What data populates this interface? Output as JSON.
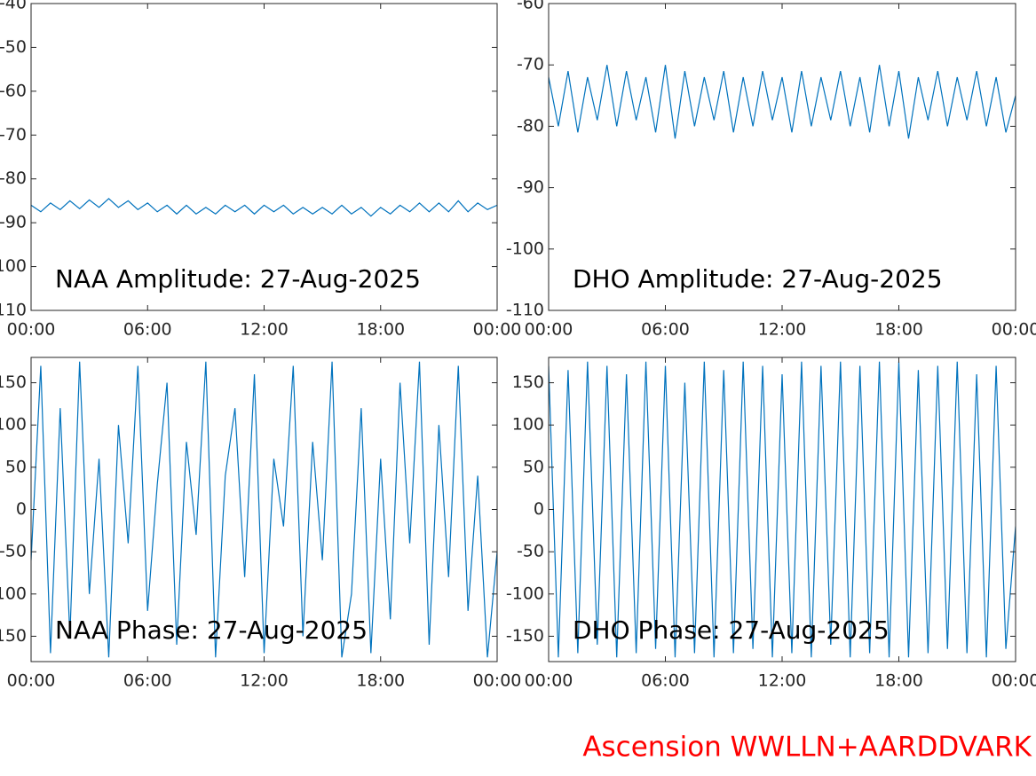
{
  "chart_data": [
    {
      "type": "line",
      "annotation": "NAA Amplitude: 27-Aug-2025",
      "xlim": [
        0,
        24
      ],
      "xticks": [
        {
          "value": 0,
          "label": "00:00"
        },
        {
          "value": 6,
          "label": "06:00"
        },
        {
          "value": 12,
          "label": "12:00"
        },
        {
          "value": 18,
          "label": "18:00"
        },
        {
          "value": 24,
          "label": "00:00"
        }
      ],
      "ylim": [
        -110,
        -40
      ],
      "yticks": [
        -40,
        -50,
        -60,
        -70,
        -80,
        -90,
        -100,
        -110
      ],
      "x": [
        0,
        0.5,
        1,
        1.5,
        2,
        2.5,
        3,
        3.5,
        4,
        4.5,
        5,
        5.5,
        6,
        6.5,
        7,
        7.5,
        8,
        8.5,
        9,
        9.5,
        10,
        10.5,
        11,
        11.5,
        12,
        12.5,
        13,
        13.5,
        14,
        14.5,
        15,
        15.5,
        16,
        16.5,
        17,
        17.5,
        18,
        18.5,
        19,
        19.5,
        20,
        20.5,
        21,
        21.5,
        22,
        22.5,
        23,
        23.5,
        24
      ],
      "series": [
        {
          "color": "#0072bd",
          "values": [
            -86,
            -87.5,
            -85.5,
            -87,
            -85,
            -86.8,
            -84.8,
            -86.5,
            -84.5,
            -86.5,
            -85,
            -87,
            -85.5,
            -87.5,
            -86,
            -88,
            -86,
            -88,
            -86.5,
            -88,
            -86,
            -87.5,
            -86,
            -88,
            -86,
            -87.5,
            -86,
            -88,
            -86.5,
            -88,
            -86.5,
            -88,
            -86,
            -88,
            -86.5,
            -88.5,
            -86.5,
            -88,
            -86,
            -87.5,
            -85.5,
            -87.5,
            -85.5,
            -87.5,
            -85,
            -87.5,
            -85.5,
            -87,
            -86
          ]
        }
      ]
    },
    {
      "type": "line",
      "annotation": "DHO Amplitude: 27-Aug-2025",
      "xlim": [
        0,
        24
      ],
      "xticks": [
        {
          "value": 0,
          "label": "00:00"
        },
        {
          "value": 6,
          "label": "06:00"
        },
        {
          "value": 12,
          "label": "12:00"
        },
        {
          "value": 18,
          "label": "18:00"
        },
        {
          "value": 24,
          "label": "00:00"
        }
      ],
      "ylim": [
        -110,
        -60
      ],
      "yticks": [
        -60,
        -70,
        -80,
        -90,
        -100,
        -110
      ],
      "x": [
        0,
        0.5,
        1,
        1.5,
        2,
        2.5,
        3,
        3.5,
        4,
        4.5,
        5,
        5.5,
        6,
        6.5,
        7,
        7.5,
        8,
        8.5,
        9,
        9.5,
        10,
        10.5,
        11,
        11.5,
        12,
        12.5,
        13,
        13.5,
        14,
        14.5,
        15,
        15.5,
        16,
        16.5,
        17,
        17.5,
        18,
        18.5,
        19,
        19.5,
        20,
        20.5,
        21,
        21.5,
        22,
        22.5,
        23,
        23.5,
        24
      ],
      "series": [
        {
          "color": "#0072bd",
          "values": [
            -72,
            -80,
            -71,
            -81,
            -72,
            -79,
            -70,
            -80,
            -71,
            -79,
            -72,
            -81,
            -70,
            -82,
            -71,
            -80,
            -72,
            -79,
            -71,
            -81,
            -72,
            -80,
            -71,
            -79,
            -72,
            -81,
            -71,
            -80,
            -72,
            -79,
            -71,
            -80,
            -72,
            -81,
            -70,
            -80,
            -71,
            -82,
            -72,
            -79,
            -71,
            -80,
            -72,
            -79,
            -71,
            -80,
            -72,
            -81,
            -75
          ]
        }
      ]
    },
    {
      "type": "line",
      "annotation": "NAA Phase: 27-Aug-2025",
      "xlim": [
        0,
        24
      ],
      "xticks": [
        {
          "value": 0,
          "label": "00:00"
        },
        {
          "value": 6,
          "label": "06:00"
        },
        {
          "value": 12,
          "label": "12:00"
        },
        {
          "value": 18,
          "label": "18:00"
        },
        {
          "value": 24,
          "label": "00:00"
        }
      ],
      "ylim": [
        -180,
        180
      ],
      "yticks": [
        -150,
        -100,
        -50,
        0,
        50,
        100,
        150
      ],
      "x": [
        0,
        0.5,
        1,
        1.5,
        2,
        2.5,
        3,
        3.5,
        4,
        4.5,
        5,
        5.5,
        6,
        6.5,
        7,
        7.5,
        8,
        8.5,
        9,
        9.5,
        10,
        10.5,
        11,
        11.5,
        12,
        12.5,
        13,
        13.5,
        14,
        14.5,
        15,
        15.5,
        16,
        16.5,
        17,
        17.5,
        18,
        18.5,
        19,
        19.5,
        20,
        20.5,
        21,
        21.5,
        22,
        22.5,
        23,
        23.5,
        24
      ],
      "series": [
        {
          "color": "#0072bd",
          "values": [
            -60,
            170,
            -170,
            120,
            -150,
            175,
            -100,
            60,
            -175,
            100,
            -40,
            170,
            -120,
            30,
            150,
            -160,
            80,
            -30,
            175,
            -175,
            40,
            120,
            -80,
            160,
            -170,
            60,
            -20,
            170,
            -150,
            80,
            -60,
            175,
            -175,
            -100,
            120,
            -170,
            60,
            -130,
            150,
            -40,
            175,
            -160,
            100,
            -80,
            170,
            -120,
            40,
            -175,
            -50
          ]
        }
      ]
    },
    {
      "type": "line",
      "annotation": "DHO Phase: 27-Aug-2025",
      "xlim": [
        0,
        24
      ],
      "xticks": [
        {
          "value": 0,
          "label": "00:00"
        },
        {
          "value": 6,
          "label": "06:00"
        },
        {
          "value": 12,
          "label": "12:00"
        },
        {
          "value": 18,
          "label": "18:00"
        },
        {
          "value": 24,
          "label": "00:00"
        }
      ],
      "ylim": [
        -180,
        180
      ],
      "yticks": [
        -150,
        -100,
        -50,
        0,
        50,
        100,
        150
      ],
      "x": [
        0,
        0.5,
        1,
        1.5,
        2,
        2.5,
        3,
        3.5,
        4,
        4.5,
        5,
        5.5,
        6,
        6.5,
        7,
        7.5,
        8,
        8.5,
        9,
        9.5,
        10,
        10.5,
        11,
        11.5,
        12,
        12.5,
        13,
        13.5,
        14,
        14.5,
        15,
        15.5,
        16,
        16.5,
        17,
        17.5,
        18,
        18.5,
        19,
        19.5,
        20,
        20.5,
        21,
        21.5,
        22,
        22.5,
        23,
        23.5,
        24
      ],
      "series": [
        {
          "color": "#0072bd",
          "values": [
            170,
            -175,
            165,
            -170,
            175,
            -160,
            170,
            -175,
            160,
            -170,
            175,
            -165,
            170,
            -175,
            150,
            -170,
            175,
            -175,
            165,
            -170,
            175,
            -165,
            170,
            -175,
            160,
            -170,
            175,
            -175,
            170,
            -160,
            175,
            -175,
            170,
            -170,
            175,
            -175,
            175,
            -175,
            165,
            -170,
            170,
            -165,
            175,
            -170,
            160,
            -175,
            170,
            -165,
            -20
          ]
        }
      ]
    }
  ],
  "footer": "Ascension WWLLN+AARDDVARK"
}
